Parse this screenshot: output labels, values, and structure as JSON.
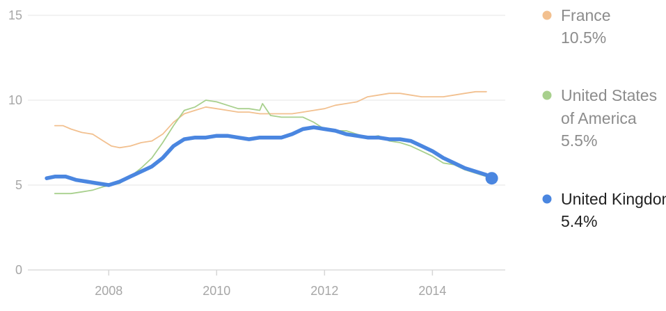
{
  "chart_data": {
    "type": "line",
    "title": "",
    "xlabel": "",
    "ylabel": "",
    "xlim": [
      2006.5,
      2015.35
    ],
    "ylim": [
      0,
      15
    ],
    "y_ticks": [
      "0",
      "5",
      "10",
      "15"
    ],
    "x_ticks": [
      "2008",
      "2010",
      "2012",
      "2014"
    ],
    "grid": true,
    "legend_position": "right",
    "series": [
      {
        "name": "France",
        "value_label": "10.5%",
        "color": "#f2c08f",
        "x": [
          2007.0,
          2007.15,
          2007.3,
          2007.5,
          2007.7,
          2007.9,
          2008.05,
          2008.2,
          2008.4,
          2008.6,
          2008.8,
          2009.0,
          2009.2,
          2009.4,
          2009.6,
          2009.8,
          2010.0,
          2010.2,
          2010.4,
          2010.6,
          2010.8,
          2011.0,
          2011.2,
          2011.4,
          2011.6,
          2011.8,
          2012.0,
          2012.2,
          2012.4,
          2012.6,
          2012.8,
          2013.0,
          2013.2,
          2013.4,
          2013.6,
          2013.8,
          2014.0,
          2014.2,
          2014.4,
          2014.6,
          2014.8,
          2015.0
        ],
        "values": [
          8.5,
          8.5,
          8.3,
          8.1,
          8.0,
          7.6,
          7.3,
          7.2,
          7.3,
          7.5,
          7.6,
          8.0,
          8.7,
          9.2,
          9.4,
          9.6,
          9.5,
          9.4,
          9.3,
          9.3,
          9.2,
          9.2,
          9.2,
          9.2,
          9.3,
          9.4,
          9.5,
          9.7,
          9.8,
          9.9,
          10.2,
          10.3,
          10.4,
          10.4,
          10.3,
          10.2,
          10.2,
          10.2,
          10.3,
          10.4,
          10.5,
          10.5
        ]
      },
      {
        "name": "United States of America",
        "value_label": "5.5%",
        "color": "#a8d08d",
        "x": [
          2007.0,
          2007.15,
          2007.3,
          2007.5,
          2007.7,
          2007.9,
          2008.05,
          2008.2,
          2008.4,
          2008.6,
          2008.8,
          2009.0,
          2009.2,
          2009.4,
          2009.6,
          2009.8,
          2010.0,
          2010.2,
          2010.4,
          2010.6,
          2010.8,
          2010.85,
          2011.0,
          2011.2,
          2011.4,
          2011.6,
          2011.8,
          2012.0,
          2012.2,
          2012.4,
          2012.6,
          2012.8,
          2013.0,
          2013.2,
          2013.4,
          2013.6,
          2013.8,
          2014.0,
          2014.2,
          2014.4,
          2014.6,
          2014.8,
          2015.0
        ],
        "values": [
          4.5,
          4.5,
          4.5,
          4.6,
          4.7,
          4.9,
          5.0,
          5.1,
          5.5,
          6.0,
          6.6,
          7.5,
          8.5,
          9.4,
          9.6,
          10.0,
          9.9,
          9.7,
          9.5,
          9.5,
          9.4,
          9.8,
          9.1,
          9.0,
          9.0,
          9.0,
          8.7,
          8.3,
          8.2,
          8.2,
          8.0,
          7.8,
          7.9,
          7.6,
          7.5,
          7.3,
          7.0,
          6.7,
          6.3,
          6.2,
          5.9,
          5.7,
          5.5
        ]
      },
      {
        "name": "United Kingdom",
        "value_label": "5.4%",
        "color": "#4a86e0",
        "x": [
          2006.85,
          2007.0,
          2007.2,
          2007.4,
          2007.6,
          2007.8,
          2008.0,
          2008.2,
          2008.4,
          2008.6,
          2008.8,
          2009.0,
          2009.2,
          2009.4,
          2009.6,
          2009.8,
          2010.0,
          2010.2,
          2010.4,
          2010.6,
          2010.8,
          2011.0,
          2011.2,
          2011.4,
          2011.6,
          2011.8,
          2012.0,
          2012.2,
          2012.4,
          2012.6,
          2012.8,
          2013.0,
          2013.2,
          2013.4,
          2013.6,
          2013.8,
          2014.0,
          2014.2,
          2014.4,
          2014.6,
          2014.8,
          2015.0,
          2015.1
        ],
        "values": [
          5.4,
          5.5,
          5.5,
          5.3,
          5.2,
          5.1,
          5.0,
          5.2,
          5.5,
          5.8,
          6.1,
          6.6,
          7.3,
          7.7,
          7.8,
          7.8,
          7.9,
          7.9,
          7.8,
          7.7,
          7.8,
          7.8,
          7.8,
          8.0,
          8.3,
          8.4,
          8.3,
          8.2,
          8.0,
          7.9,
          7.8,
          7.8,
          7.7,
          7.7,
          7.6,
          7.3,
          7.0,
          6.6,
          6.3,
          6.0,
          5.8,
          5.6,
          5.4
        ]
      }
    ]
  }
}
